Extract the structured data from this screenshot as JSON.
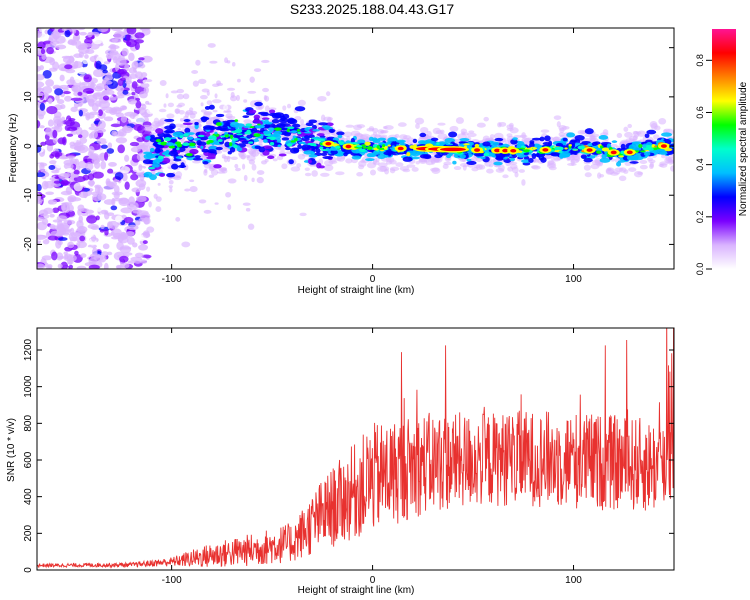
{
  "title": "S233.2025.188.04.43.G17",
  "chart_data": [
    {
      "type": "heatmap",
      "xlabel": "Height of straight line (km)",
      "ylabel": "Frequency (Hz)",
      "xlim": [
        -167,
        150
      ],
      "ylim": [
        -25,
        24
      ],
      "xticks": [
        -100,
        0,
        100
      ],
      "xtick_labels": [
        "-100",
        "0",
        "100"
      ],
      "yticks": [
        -20,
        -10,
        0,
        10,
        20
      ],
      "ytick_labels": [
        "-20",
        "-10",
        "0",
        "10",
        "20"
      ],
      "colorbar": {
        "label": "Normalized spectral amplitude",
        "range": [
          0,
          0.92
        ],
        "ticks": [
          0.0,
          0.2,
          0.4,
          0.6,
          0.8
        ],
        "tick_labels": [
          "0.0",
          "0.2",
          "0.4",
          "0.6",
          "0.8"
        ],
        "colors": [
          "#ffffff",
          "#d9b3ff",
          "#7a00ff",
          "#0000ff",
          "#00bfff",
          "#00ffcc",
          "#00ff00",
          "#ffff00",
          "#ff8000",
          "#ff0000",
          "#ff1493"
        ]
      },
      "ridge": [
        {
          "x": -110,
          "y": -1.5
        },
        {
          "x": -95,
          "y": 0.5
        },
        {
          "x": -80,
          "y": 1.5
        },
        {
          "x": -60,
          "y": 3
        },
        {
          "x": -45,
          "y": 2.5
        },
        {
          "x": -30,
          "y": 1
        },
        {
          "x": -15,
          "y": 0
        },
        {
          "x": 0,
          "y": -0.5
        },
        {
          "x": 25,
          "y": -0.5
        },
        {
          "x": 50,
          "y": -0.8
        },
        {
          "x": 75,
          "y": -1
        },
        {
          "x": 100,
          "y": -0.5
        },
        {
          "x": 125,
          "y": -1.5
        },
        {
          "x": 145,
          "y": 0
        }
      ],
      "grid": false
    },
    {
      "type": "line",
      "xlabel": "Height of straight line (km)",
      "ylabel": "SNR (10 * v/v)",
      "xlim": [
        -167,
        150
      ],
      "ylim": [
        0,
        1320
      ],
      "xticks": [
        -100,
        0,
        100
      ],
      "xtick_labels": [
        "-100",
        "0",
        "100"
      ],
      "yticks": [
        0,
        200,
        400,
        600,
        800,
        1000,
        1200
      ],
      "ytick_labels": [
        "0",
        "200",
        "400",
        "600",
        "800",
        "1000",
        "1200"
      ],
      "color": "#e8312f",
      "envelope": [
        {
          "x": -167,
          "mean": 25,
          "spread": 10
        },
        {
          "x": -120,
          "mean": 28,
          "spread": 12
        },
        {
          "x": -100,
          "mean": 45,
          "spread": 25
        },
        {
          "x": -80,
          "mean": 80,
          "spread": 70
        },
        {
          "x": -60,
          "mean": 110,
          "spread": 90
        },
        {
          "x": -40,
          "mean": 150,
          "spread": 110
        },
        {
          "x": -25,
          "mean": 300,
          "spread": 200
        },
        {
          "x": -10,
          "mean": 420,
          "spread": 260
        },
        {
          "x": 0,
          "mean": 500,
          "spread": 300
        },
        {
          "x": 25,
          "mean": 580,
          "spread": 280
        },
        {
          "x": 50,
          "mean": 600,
          "spread": 260
        },
        {
          "x": 75,
          "mean": 610,
          "spread": 260
        },
        {
          "x": 100,
          "mean": 600,
          "spread": 270
        },
        {
          "x": 125,
          "mean": 580,
          "spread": 260
        },
        {
          "x": 150,
          "mean": 560,
          "spread": 260
        }
      ],
      "grid": false
    }
  ]
}
